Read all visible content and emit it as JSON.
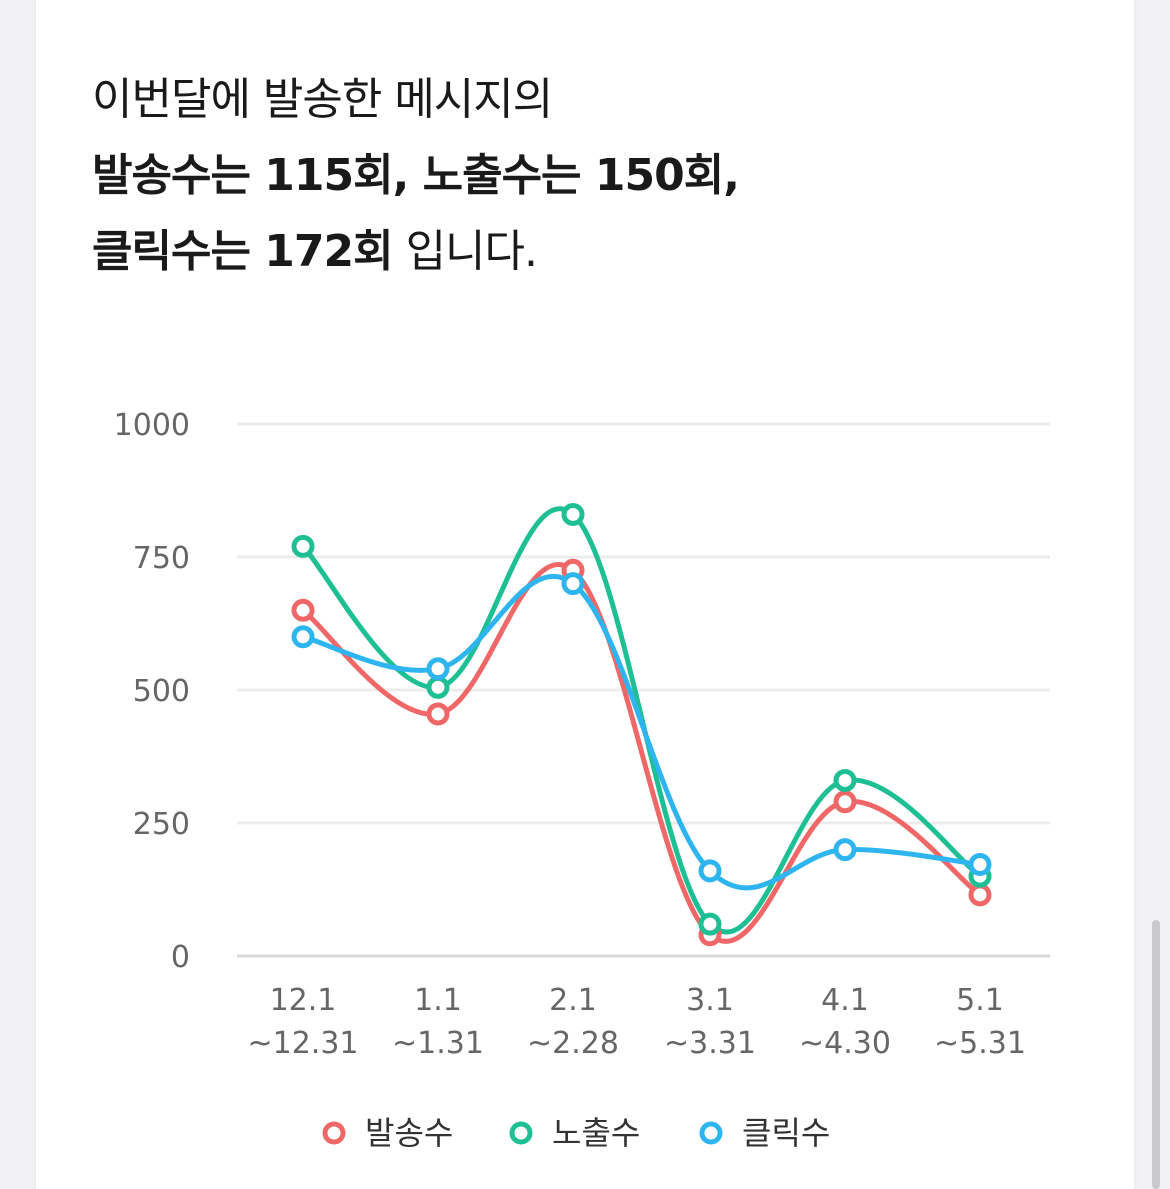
{
  "headline": {
    "line1": "이번달에 발송한 메시지의",
    "line2_a": "발송수는 ",
    "line2_b": "115",
    "line2_c": "회, 노출수는 ",
    "line2_d": "150",
    "line2_e": "회,",
    "line3_a": "클릭수는 ",
    "line3_b": "172",
    "line3_c": "회",
    "line3_d": " 입니다."
  },
  "chart_data": {
    "type": "line",
    "categories": [
      [
        "12.1",
        "~12.31"
      ],
      [
        "1.1",
        "~1.31"
      ],
      [
        "2.1",
        "~2.28"
      ],
      [
        "3.1",
        "~3.31"
      ],
      [
        "4.1",
        "~4.30"
      ],
      [
        "5.1",
        "~5.31"
      ]
    ],
    "series": [
      {
        "name": "발송수",
        "color": "#f06767",
        "values": [
          650,
          455,
          725,
          40,
          290,
          115
        ]
      },
      {
        "name": "노출수",
        "color": "#1fbf94",
        "values": [
          770,
          505,
          830,
          60,
          330,
          150
        ]
      },
      {
        "name": "클릭수",
        "color": "#2eb5f0",
        "values": [
          600,
          540,
          700,
          160,
          200,
          172
        ]
      }
    ],
    "yticks": [
      0,
      250,
      500,
      750,
      1000
    ],
    "ylim": [
      0,
      1000
    ],
    "grid": true,
    "legend_position": "bottom"
  }
}
